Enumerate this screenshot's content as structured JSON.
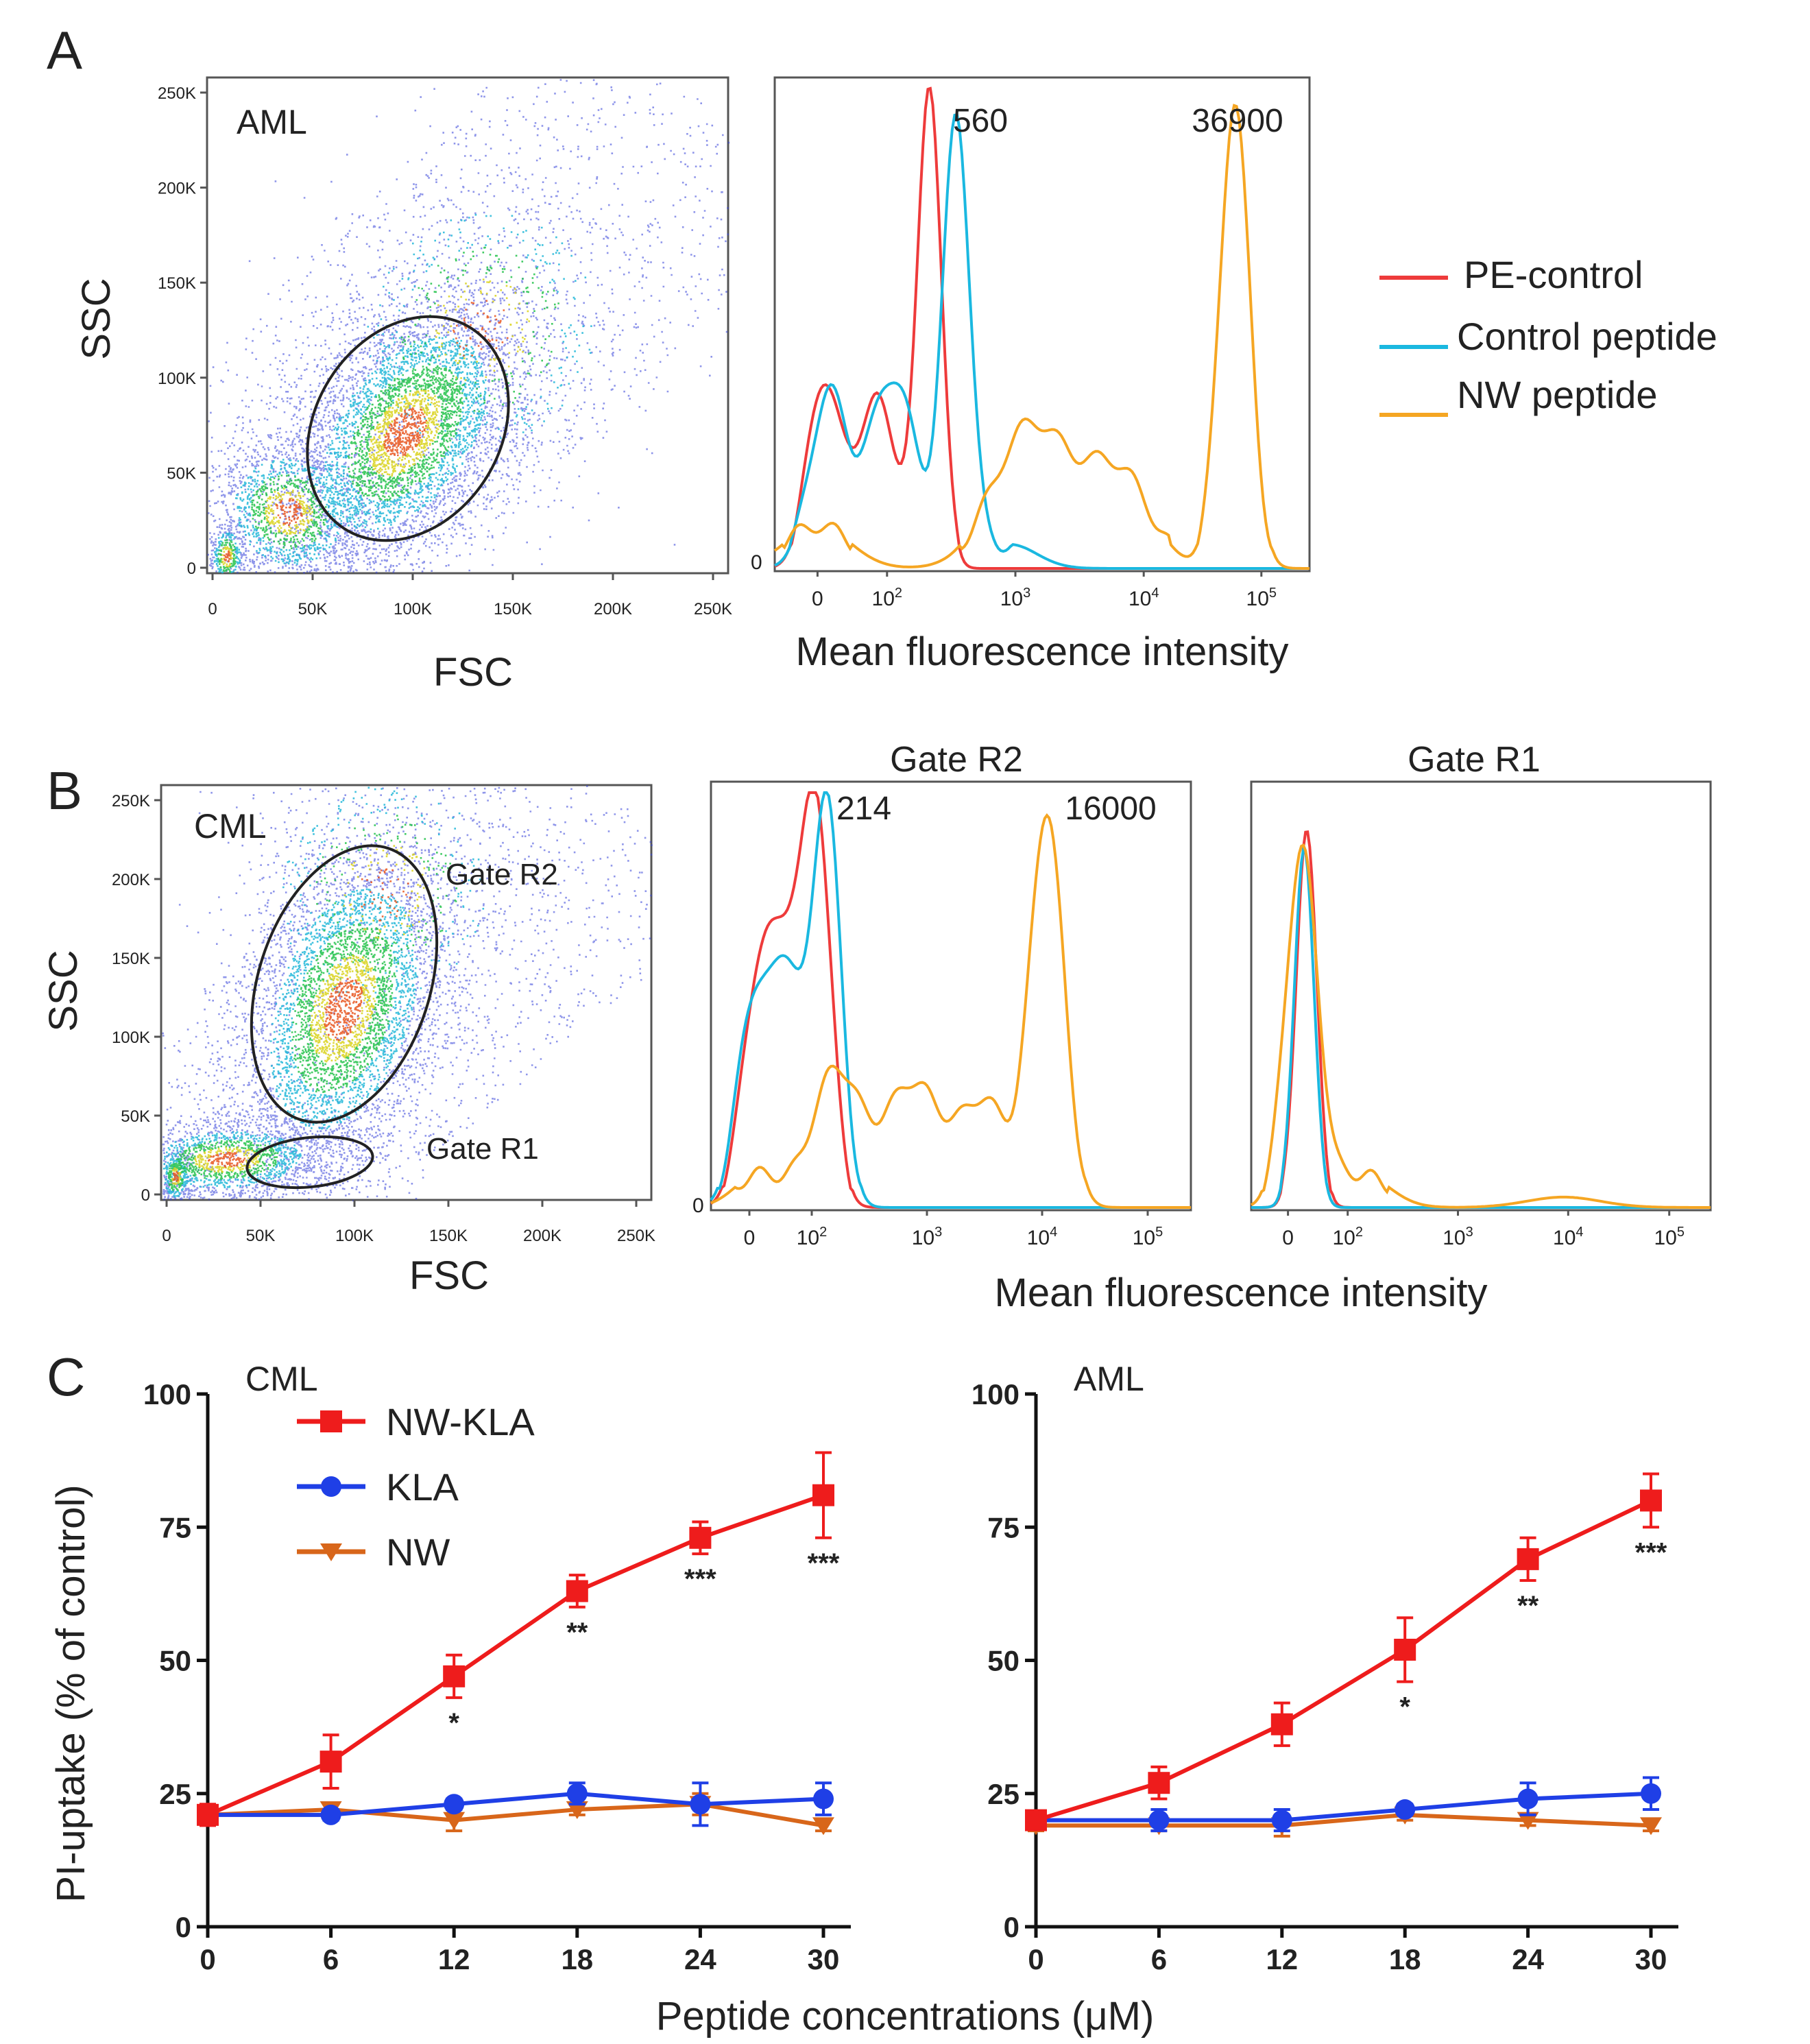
{
  "panels": {
    "A": {
      "letter": "A",
      "scatter": {
        "label": "AML",
        "xlabel": "FSC",
        "ylabel": "SSC",
        "xticks": [
          "0",
          "50K",
          "100K",
          "150K",
          "200K",
          "250K"
        ],
        "yticks": [
          "0",
          "50K",
          "100K",
          "150K",
          "200K",
          "250K"
        ]
      },
      "histogram": {
        "xlabel": "Mean fluorescence intensity",
        "peak_labels": [
          "560",
          "36900"
        ],
        "xticks": [
          "0",
          "10^2",
          "10^3",
          "10^4",
          "10^5"
        ],
        "yzero": "0"
      },
      "legend": {
        "items": [
          {
            "label": "PE-control",
            "color": "#ee3b3b"
          },
          {
            "label": "Control peptide",
            "color": "#1ab8e0"
          },
          {
            "label": "NW peptide",
            "color": "#f5a623"
          }
        ]
      }
    },
    "B": {
      "letter": "B",
      "scatter": {
        "label": "CML",
        "xlabel": "FSC",
        "ylabel": "SSC",
        "gate_r2": "Gate R2",
        "gate_r1": "Gate R1",
        "xticks": [
          "0",
          "50K",
          "100K",
          "150K",
          "200K",
          "250K"
        ],
        "yticks": [
          "0",
          "50K",
          "100K",
          "150K",
          "200K",
          "250K"
        ]
      },
      "hist_r2": {
        "title": "Gate R2",
        "peak_labels": [
          "214",
          "16000"
        ],
        "xticks": [
          "0",
          "10^2",
          "10^3",
          "10^4",
          "10^5"
        ],
        "yzero": "0"
      },
      "hist_r1": {
        "title": "Gate R1",
        "xticks": [
          "0",
          "10^2",
          "10^3",
          "10^4",
          "10^5"
        ]
      },
      "xlabel": "Mean fluorescence intensity"
    },
    "C": {
      "letter": "C",
      "ylabel": "PI-uptake (% of control)",
      "xlabel": "Peptide concentrations (μM)"
    }
  },
  "colors": {
    "pe_control": "#ee3b3b",
    "control_peptide": "#1ab8e0",
    "nw_peptide": "#f5a623",
    "nw_kla": "#ee1c1c",
    "kla": "#1f3fe6",
    "nw": "#d8661a"
  },
  "chart_data": [
    {
      "type": "line",
      "title": "CML",
      "x": [
        0,
        6,
        12,
        18,
        24,
        30
      ],
      "xticks": [
        "0",
        "6",
        "12",
        "18",
        "24",
        "30"
      ],
      "yticks": [
        "0",
        "25",
        "50",
        "75",
        "100"
      ],
      "ylim": [
        0,
        100
      ],
      "xlabel": "Peptide concentrations (μM)",
      "ylabel": "PI-uptake (% of control)",
      "legend": "top-left",
      "series": [
        {
          "name": "NW-KLA",
          "marker": "square",
          "values": [
            21,
            31,
            47,
            63,
            73,
            81
          ],
          "errors": [
            2,
            5,
            4,
            3,
            3,
            8
          ]
        },
        {
          "name": "KLA",
          "marker": "circle",
          "values": [
            21,
            21,
            23,
            25,
            23,
            24
          ],
          "errors": [
            1,
            1,
            1,
            2,
            4,
            3
          ]
        },
        {
          "name": "NW",
          "marker": "triangle-down",
          "values": [
            21,
            22,
            20,
            22,
            23,
            19
          ],
          "errors": [
            1,
            1,
            2,
            1,
            2,
            1
          ]
        }
      ],
      "significance": [
        "",
        "",
        "*",
        "**",
        "***",
        "***"
      ]
    },
    {
      "type": "line",
      "title": "AML",
      "x": [
        0,
        6,
        12,
        18,
        24,
        30
      ],
      "xticks": [
        "0",
        "6",
        "12",
        "18",
        "24",
        "30"
      ],
      "yticks": [
        "0",
        "25",
        "50",
        "75",
        "100"
      ],
      "ylim": [
        0,
        100
      ],
      "xlabel": "Peptide concentrations (μM)",
      "series": [
        {
          "name": "NW-KLA",
          "marker": "square",
          "values": [
            20,
            27,
            38,
            52,
            69,
            80
          ],
          "errors": [
            1,
            3,
            4,
            6,
            4,
            5
          ]
        },
        {
          "name": "KLA",
          "marker": "circle",
          "values": [
            20,
            20,
            20,
            22,
            24,
            25
          ],
          "errors": [
            1,
            2,
            2,
            1,
            3,
            3
          ]
        },
        {
          "name": "NW",
          "marker": "triangle-down",
          "values": [
            19,
            19,
            19,
            21,
            20,
            19
          ],
          "errors": [
            1,
            1,
            2,
            1,
            1,
            1
          ]
        }
      ],
      "significance": [
        "",
        "",
        "",
        "*",
        "**",
        "***"
      ]
    }
  ]
}
